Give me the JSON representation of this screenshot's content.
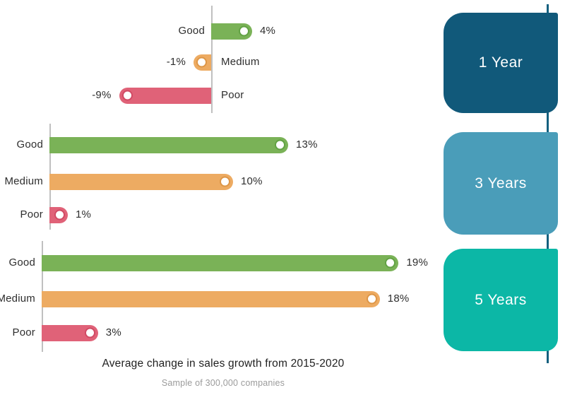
{
  "page": {
    "title": "Average change in sales growth from 2015-2020",
    "subtitle": "Sample of 300,000 companies"
  },
  "colors": {
    "good": "#7ab257",
    "good_ring": "#61a243",
    "medium": "#edab62",
    "medium_ring": "#dd9647",
    "poor": "#e06278",
    "poor_ring": "#d14a64",
    "card_1_year": "#11597a",
    "card_3_years": "#4a9db9",
    "card_5_years": "#0cb7a6",
    "timeline": "#14607f",
    "axis": "#c0c0c0",
    "label_text": "#2e2e2e",
    "subtitle_text": "#9b9b9b",
    "card_text": "#ffffff"
  },
  "chart_data": {
    "type": "bar",
    "orientation": "horizontal-lollipop",
    "title": "Average change in sales growth from 2015-2020",
    "subtitle": "Sample of 300,000 companies",
    "categories": [
      "Good",
      "Medium",
      "Poor"
    ],
    "series_colors": {
      "Good": "#7ab257",
      "Medium": "#edab62",
      "Poor": "#e06278"
    },
    "unit": "%",
    "grid": false,
    "legend_position": "right-cards",
    "groups": [
      {
        "period_label": "1 Year",
        "values": [
          4,
          -1,
          -9
        ],
        "value_labels": [
          "4%",
          "-1%",
          "-9%"
        ],
        "xlim": [
          -10,
          5
        ]
      },
      {
        "period_label": "3 Years",
        "values": [
          13,
          10,
          1
        ],
        "value_labels": [
          "13%",
          "10%",
          "1%"
        ],
        "xlim": [
          0,
          14
        ]
      },
      {
        "period_label": "5 Years",
        "values": [
          19,
          18,
          3
        ],
        "value_labels": [
          "19%",
          "18%",
          "3%"
        ],
        "xlim": [
          0,
          20
        ]
      }
    ]
  }
}
